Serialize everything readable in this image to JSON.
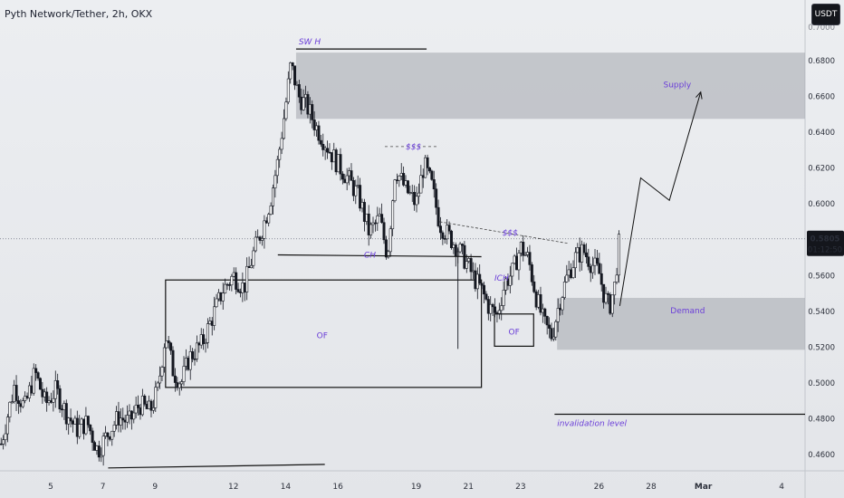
{
  "header": {
    "title": "Pyth Network/Tether, 2h, OKX",
    "currency_badge": "USDT"
  },
  "price_tag": {
    "value": "0.5805",
    "countdown": "01:12:50"
  },
  "chart_data": {
    "type": "candlestick",
    "title": "Pyth Network/Tether, 2h, OKX",
    "y_ticks": [
      "0.4600",
      "0.4800",
      "0.5000",
      "0.5200",
      "0.5400",
      "0.5600",
      "0.5800",
      "0.6000",
      "0.6200",
      "0.6400",
      "0.6600",
      "0.6800"
    ],
    "ylim": [
      0.445,
      0.71
    ],
    "x_ticks": [
      {
        "label": "5",
        "day": 5
      },
      {
        "label": "7",
        "day": 7
      },
      {
        "label": "9",
        "day": 9
      },
      {
        "label": "12",
        "day": 12
      },
      {
        "label": "14",
        "day": 14
      },
      {
        "label": "16",
        "day": 16
      },
      {
        "label": "19",
        "day": 19
      },
      {
        "label": "21",
        "day": 21
      },
      {
        "label": "23",
        "day": 23
      },
      {
        "label": "26",
        "day": 26
      },
      {
        "label": "28",
        "day": 28
      },
      {
        "label": "Mar",
        "day": 30,
        "bold": true
      },
      {
        "label": "4",
        "day": 33
      }
    ],
    "current_price": 0.5805,
    "price_path": [
      [
        3.1,
        0.466
      ],
      [
        3.6,
        0.498
      ],
      [
        4.0,
        0.486
      ],
      [
        4.4,
        0.506
      ],
      [
        4.8,
        0.488
      ],
      [
        5.2,
        0.496
      ],
      [
        5.6,
        0.483
      ],
      [
        6.0,
        0.474
      ],
      [
        6.4,
        0.478
      ],
      [
        6.8,
        0.462
      ],
      [
        7.2,
        0.472
      ],
      [
        7.6,
        0.481
      ],
      [
        8.0,
        0.478
      ],
      [
        8.4,
        0.488
      ],
      [
        8.8,
        0.484
      ],
      [
        9.1,
        0.496
      ],
      [
        9.4,
        0.528
      ],
      [
        9.7,
        0.506
      ],
      [
        10.0,
        0.5
      ],
      [
        10.3,
        0.514
      ],
      [
        10.8,
        0.522
      ],
      [
        11.2,
        0.537
      ],
      [
        11.6,
        0.552
      ],
      [
        12.0,
        0.56
      ],
      [
        12.4,
        0.553
      ],
      [
        12.8,
        0.574
      ],
      [
        13.1,
        0.586
      ],
      [
        13.4,
        0.601
      ],
      [
        13.7,
        0.624
      ],
      [
        14.0,
        0.655
      ],
      [
        14.2,
        0.678
      ],
      [
        14.5,
        0.66
      ],
      [
        14.8,
        0.655
      ],
      [
        15.2,
        0.642
      ],
      [
        15.6,
        0.632
      ],
      [
        16.0,
        0.622
      ],
      [
        16.4,
        0.614
      ],
      [
        16.8,
        0.604
      ],
      [
        17.2,
        0.584
      ],
      [
        17.6,
        0.592
      ],
      [
        17.9,
        0.571
      ],
      [
        18.2,
        0.62
      ],
      [
        18.6,
        0.608
      ],
      [
        19.0,
        0.6
      ],
      [
        19.3,
        0.622
      ],
      [
        19.6,
        0.61
      ],
      [
        19.9,
        0.589
      ],
      [
        20.2,
        0.583
      ],
      [
        20.6,
        0.575
      ],
      [
        20.9,
        0.568
      ],
      [
        21.2,
        0.559
      ],
      [
        21.5,
        0.552
      ],
      [
        21.8,
        0.542
      ],
      [
        22.1,
        0.538
      ],
      [
        22.4,
        0.556
      ],
      [
        22.7,
        0.562
      ],
      [
        23.0,
        0.576
      ],
      [
        23.3,
        0.569
      ],
      [
        23.6,
        0.548
      ],
      [
        23.9,
        0.533
      ],
      [
        24.2,
        0.526
      ],
      [
        24.5,
        0.546
      ],
      [
        24.8,
        0.56
      ],
      [
        25.1,
        0.57
      ],
      [
        25.4,
        0.574
      ],
      [
        25.7,
        0.567
      ],
      [
        26.0,
        0.562
      ],
      [
        26.2,
        0.549
      ],
      [
        26.4,
        0.542
      ],
      [
        26.6,
        0.554
      ],
      [
        26.8,
        0.582
      ]
    ],
    "zones": [
      {
        "name": "Supply",
        "from_day": 14.4,
        "to_day": 35.2,
        "top": 0.6845,
        "bottom": 0.6475
      },
      {
        "name": "Demand",
        "from_day": 24.4,
        "to_day": 35.2,
        "top": 0.5475,
        "bottom": 0.5185
      }
    ],
    "boxes": [
      {
        "name": "OF",
        "from_day": 9.4,
        "to_day": 21.5,
        "top": 0.5575,
        "bottom": 0.4975
      },
      {
        "name": "OF",
        "from_day": 22.0,
        "to_day": 23.5,
        "top": 0.5385,
        "bottom": 0.5205
      }
    ],
    "annotations": {
      "swing_high": "SW H",
      "liquidity_top": "$$$",
      "liquidity_mid": "$$$",
      "change_of_character": "CH",
      "internal_change": "ICH",
      "order_flow_large": "OF",
      "order_flow_small": "OF",
      "supply_label": "Supply",
      "demand_label": "Demand",
      "invalidation": "invalidation level"
    },
    "lines": {
      "swing_high_level": 0.6865,
      "ch_level": 0.5715,
      "invalidation_level": 0.4825,
      "low_trendline": {
        "from": [
          7.2,
          0.4525
        ],
        "to": [
          15.5,
          0.4545
        ]
      },
      "projection": [
        [
          26.8,
          0.543
        ],
        [
          27.6,
          0.6145
        ],
        [
          28.7,
          0.602
        ],
        [
          29.9,
          0.6625
        ]
      ]
    },
    "colors": {
      "candle_body": "#151821",
      "zone_fill": "#a8abb2",
      "annotation": "#6b3fd8",
      "background": "#e6e8ec",
      "axis_text": "#2b2f3a"
    }
  }
}
